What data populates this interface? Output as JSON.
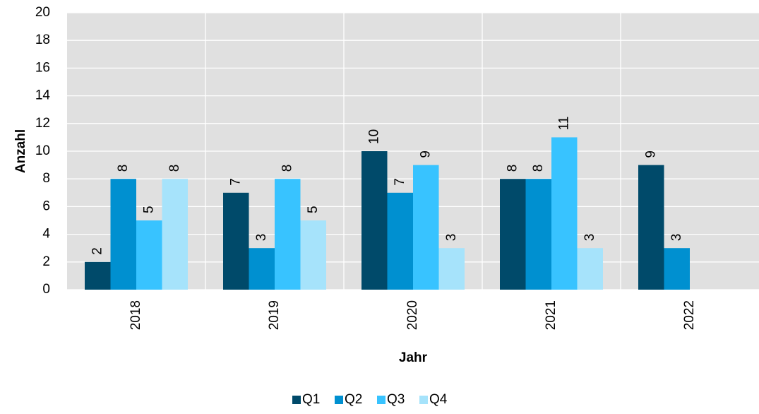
{
  "chart_data": {
    "type": "bar",
    "x_label": "Jahr",
    "y_label": "Anzahl",
    "categories": [
      "2018",
      "2019",
      "2020",
      "2021",
      "2022"
    ],
    "series": [
      {
        "name": "Q1",
        "color": "#004a6a",
        "values": [
          2,
          7,
          10,
          8,
          9
        ]
      },
      {
        "name": "Q2",
        "color": "#0090d0",
        "values": [
          8,
          3,
          7,
          8,
          3
        ]
      },
      {
        "name": "Q3",
        "color": "#38c3ff",
        "values": [
          5,
          8,
          9,
          11,
          null
        ]
      },
      {
        "name": "Q4",
        "color": "#a6e3fb",
        "values": [
          8,
          5,
          3,
          3,
          null
        ]
      }
    ],
    "ylim": [
      0,
      20
    ],
    "yticks": [
      0,
      2,
      4,
      6,
      8,
      10,
      12,
      14,
      16,
      18,
      20
    ],
    "grid": true,
    "legend": "bottom",
    "show_values": true
  }
}
